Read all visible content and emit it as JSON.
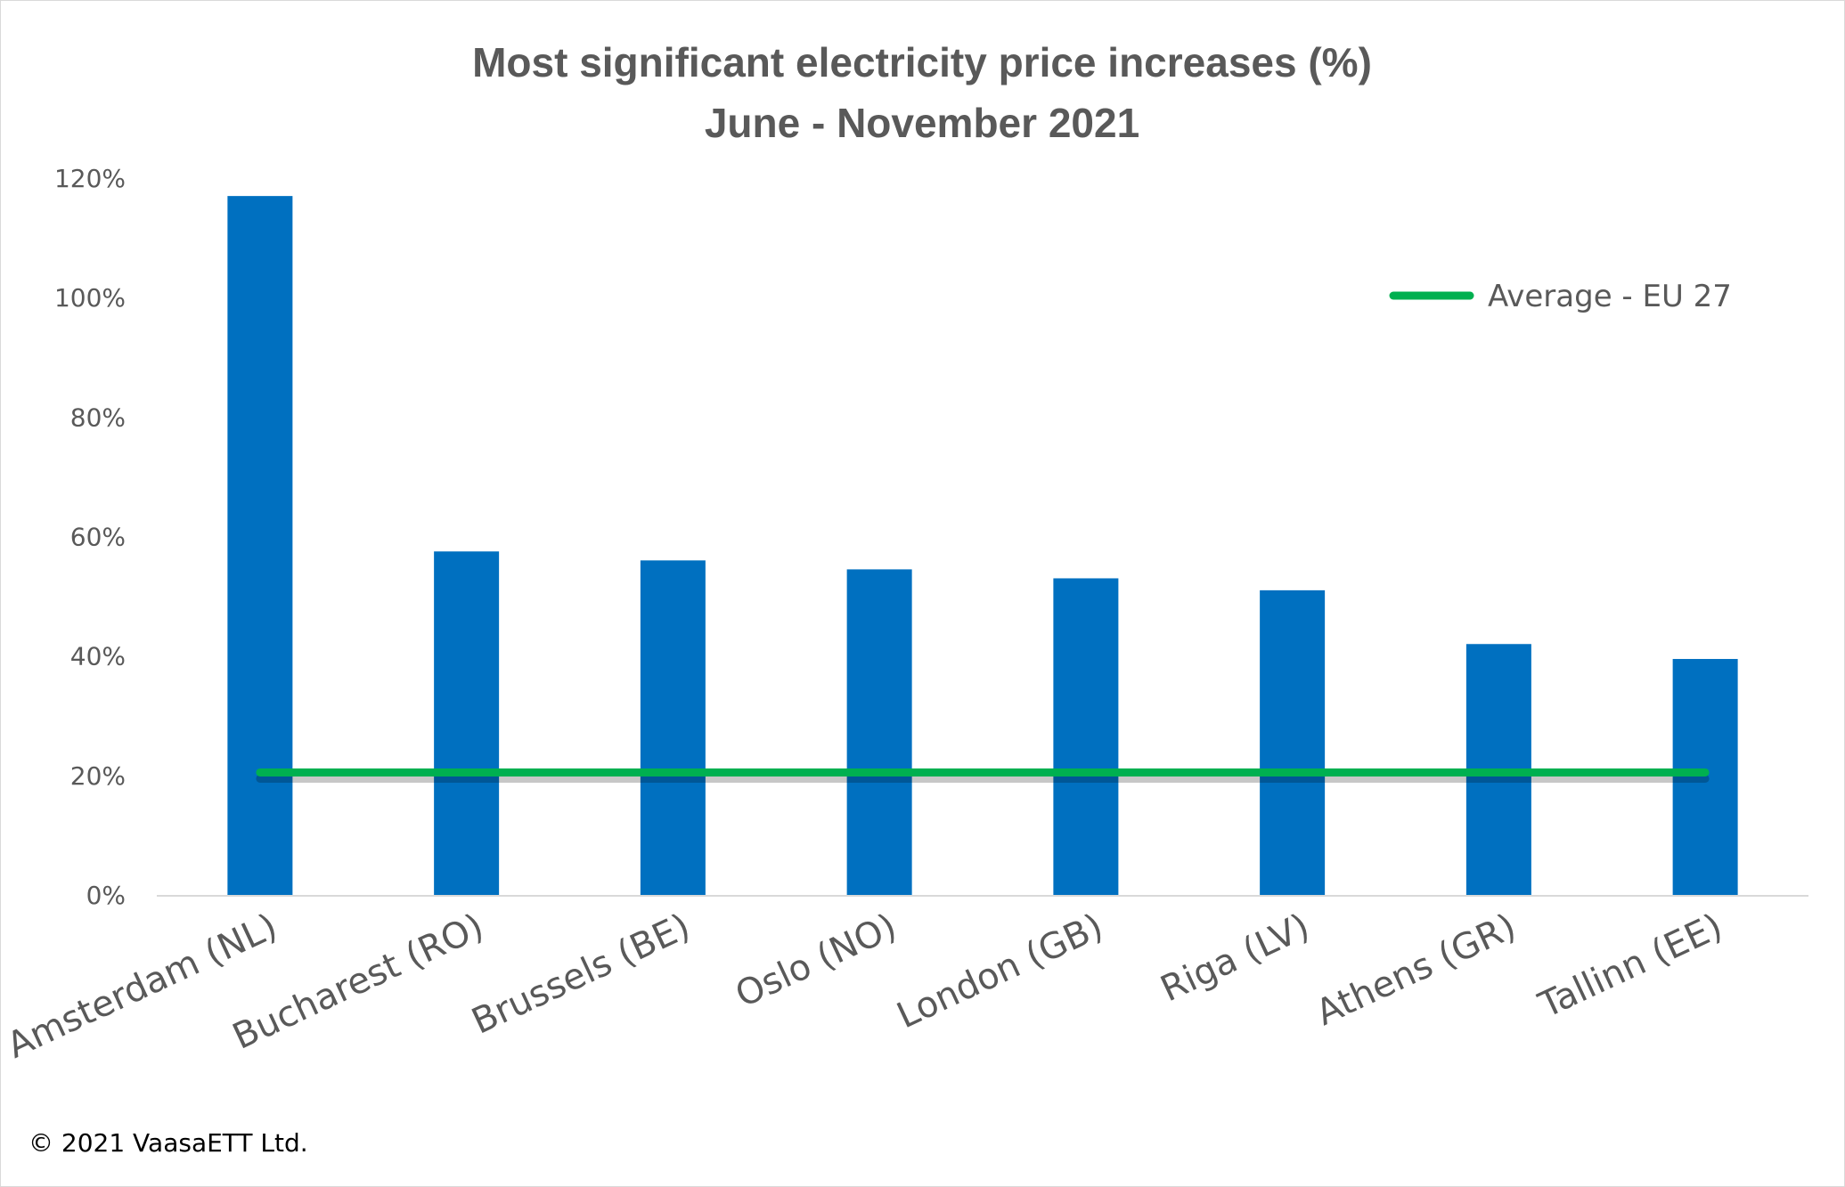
{
  "chart_data": {
    "type": "bar",
    "title": [
      "Most significant electricity price increases (%)",
      "June - November 2021"
    ],
    "categories": [
      "Amsterdam (NL)",
      "Bucharest (RO)",
      "Brussels (BE)",
      "Oslo (NO)",
      "London (GB)",
      "Riga (LV)",
      "Athens (GR)",
      "Tallinn (EE)"
    ],
    "series": [
      {
        "values": [
          117,
          57.5,
          56,
          54.5,
          53,
          51,
          42,
          39.5
        ],
        "color": "#0070C0"
      },
      {
        "name": "Average - EU 27",
        "type": "line",
        "values": [
          20.5,
          20.5,
          20.5,
          20.5,
          20.5,
          20.5,
          20.5,
          20.5
        ],
        "color": "#00B050"
      }
    ],
    "ylim": [
      0,
      120
    ],
    "yticks": [
      "0%",
      "20%",
      "40%",
      "60%",
      "80%",
      "100%",
      "120%"
    ],
    "xlabel": "",
    "ylabel": "",
    "legend_position": "top-right",
    "grid": false
  },
  "footer": {
    "copyright": "© 2021 VaasaETT Ltd."
  }
}
